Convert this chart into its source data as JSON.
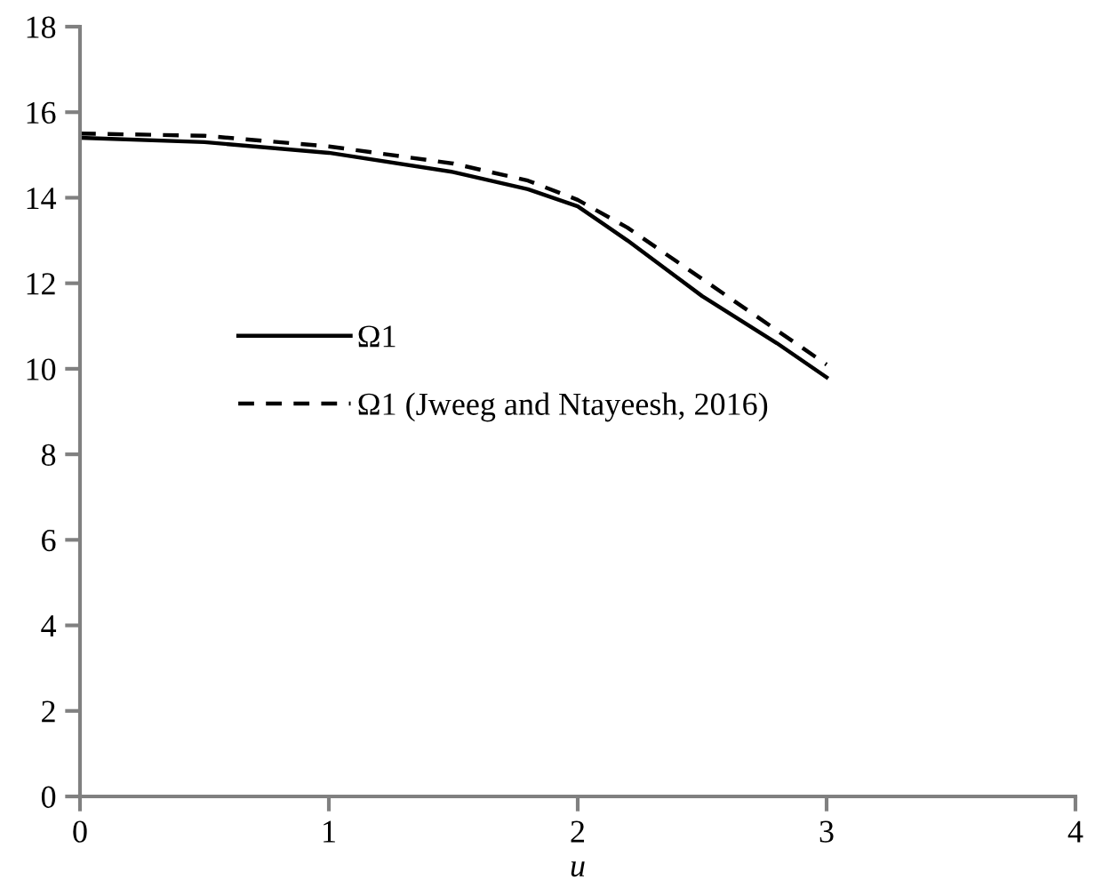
{
  "chart_data": {
    "type": "line",
    "xlabel": "u",
    "x": [
      0,
      0.5,
      1,
      1.5,
      1.8,
      2,
      2.2,
      2.5,
      2.8,
      3
    ],
    "series": [
      {
        "name": "Ω1",
        "color": "#000000",
        "line_style": "solid",
        "values": [
          15.4,
          15.3,
          15.05,
          14.6,
          14.2,
          13.8,
          13.0,
          11.7,
          10.6,
          9.8
        ]
      },
      {
        "name": "Ω1 (Jweeg and Ntayeesh, 2016)",
        "color": "#000000",
        "line_style": "dashed",
        "values": [
          15.5,
          15.45,
          15.2,
          14.8,
          14.4,
          13.95,
          13.3,
          12.1,
          10.9,
          10.1
        ]
      }
    ],
    "xlim": [
      0,
      4
    ],
    "xticks": [
      0,
      1,
      2,
      3,
      4
    ],
    "ylim": [
      0,
      18
    ],
    "yticks": [
      0,
      2,
      4,
      6,
      8,
      10,
      12,
      14,
      16,
      18
    ],
    "grid": false,
    "legend": "center left",
    "marker": "none"
  }
}
